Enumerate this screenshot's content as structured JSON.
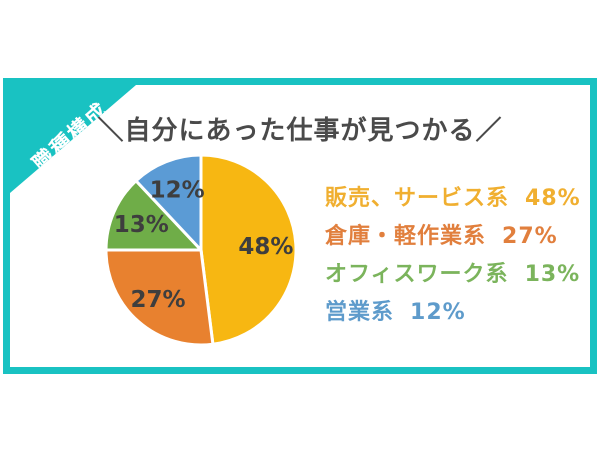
{
  "frame": {
    "border_color": "#19C2C2"
  },
  "ribbon": {
    "label": "職種構成",
    "bg_color": "#19C2C2",
    "text_color": "#FFFFFF"
  },
  "title": {
    "text": "＼自分にあった仕事が見つかる／",
    "color": "#4A4A4A"
  },
  "chart_data": {
    "type": "pie",
    "title": "職種構成",
    "categories": [
      "販売、サービス系",
      "倉庫・軽作業系",
      "オフィスワーク系",
      "営業系"
    ],
    "values": [
      48,
      27,
      13,
      12
    ],
    "unit": "%",
    "slice_labels": [
      "48%",
      "27%",
      "13%",
      "12%"
    ],
    "colors": [
      "#F7B712",
      "#E8812F",
      "#6FAD48",
      "#5B9BD5"
    ],
    "slice_label_color": "#3E3E3E",
    "start_angle_deg": 0,
    "direction": "clockwise",
    "slice_gap_color": "#FFFFFF",
    "legend_position": "right"
  },
  "legend": {
    "items": [
      {
        "label": "販売、サービス系",
        "value": "48%",
        "color": "#F0AF30"
      },
      {
        "label": "倉庫・軽作業系",
        "value": "27%",
        "color": "#E17F3D"
      },
      {
        "label": "オフィスワーク系",
        "value": "13%",
        "color": "#7BB45C"
      },
      {
        "label": "営業系",
        "value": "12%",
        "color": "#5E9BCB"
      }
    ]
  }
}
